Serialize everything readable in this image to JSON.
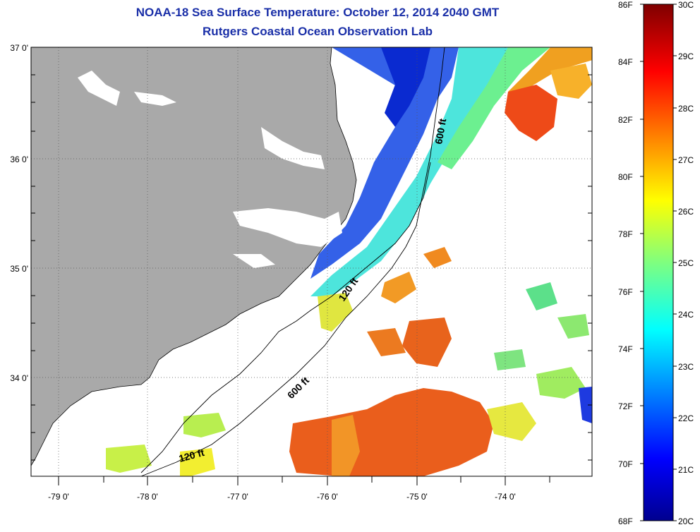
{
  "title": "NOAA-18 Sea Surface Temperature:  October 12, 2014 2040 GMT",
  "subtitle": "Rutgers Coastal Ocean Observation Lab",
  "lat_labels": [
    "37 0'",
    "36 0'",
    "35 0'",
    "34 0'"
  ],
  "lon_labels": [
    "-79 0'",
    "-78 0'",
    "-77 0'",
    "-76 0'",
    "-75 0'",
    "-74 0'"
  ],
  "contours": {
    "shelf_break": "600 ft",
    "shelf_break_south": "600 ft",
    "shelf_mid": "120 ft",
    "shelf_mid_south": "120 ft"
  },
  "colorbar": {
    "fahrenheit": [
      "86F",
      "84F",
      "82F",
      "80F",
      "78F",
      "76F",
      "74F",
      "72F",
      "70F",
      "68F"
    ],
    "celsius": [
      "30C",
      "29C",
      "28C",
      "27C",
      "26C",
      "25C",
      "24C",
      "23C",
      "22C",
      "21C",
      "20C"
    ],
    "range_c": [
      20,
      30
    ],
    "colormap": "jet"
  },
  "map": {
    "lat_range": [
      33.1,
      37.0
    ],
    "lon_range": [
      -79.3,
      -73.2
    ],
    "land_color": "#a9a9a9",
    "no_data_color": "#ffffff"
  },
  "colors": {
    "title": "#1a2fa8"
  }
}
